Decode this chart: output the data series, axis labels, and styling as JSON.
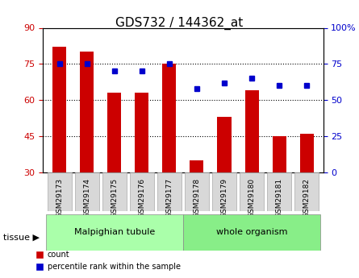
{
  "title": "GDS732 / 144362_at",
  "samples": [
    "GSM29173",
    "GSM29174",
    "GSM29175",
    "GSM29176",
    "GSM29177",
    "GSM29178",
    "GSM29179",
    "GSM29180",
    "GSM29181",
    "GSM29182"
  ],
  "counts": [
    82,
    80,
    63,
    63,
    75,
    35,
    53,
    64,
    45,
    46
  ],
  "percentiles": [
    75,
    75,
    70,
    70,
    75,
    58,
    62,
    65,
    60,
    60
  ],
  "ylim_left": [
    30,
    90
  ],
  "ylim_right": [
    0,
    100
  ],
  "yticks_left": [
    30,
    45,
    60,
    75,
    90
  ],
  "yticks_right": [
    0,
    25,
    50,
    75,
    100
  ],
  "ytick_labels_right": [
    "0",
    "25",
    "50",
    "75",
    "100%"
  ],
  "bar_color": "#cc0000",
  "point_color": "#0000cc",
  "grid_color": "#000000",
  "bar_bottom": 30,
  "tissue_groups": [
    {
      "label": "Malpighian tubule",
      "start": 0,
      "end": 5,
      "color": "#aaffaa"
    },
    {
      "label": "whole organism",
      "start": 5,
      "end": 10,
      "color": "#88ee88"
    }
  ],
  "tissue_label": "tissue",
  "legend_count_label": "count",
  "legend_pct_label": "percentile rank within the sample",
  "xlabel_color": "#cc0000",
  "ylabel_right_color": "#0000cc",
  "title_color": "#000000"
}
